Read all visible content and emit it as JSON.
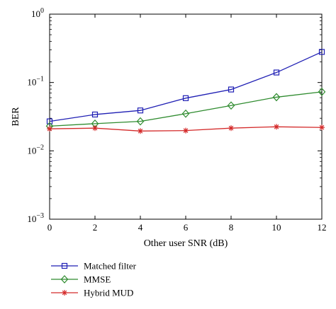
{
  "chart_data": {
    "type": "line",
    "title": "",
    "xlabel": "Other user SNR (dB)",
    "ylabel": "BER",
    "xscale": "linear",
    "yscale": "log",
    "xlim": [
      0,
      12
    ],
    "ylim": [
      0.001,
      1
    ],
    "grid": false,
    "legend_position": "below plot, left",
    "x": [
      0,
      2,
      4,
      6,
      8,
      10,
      12
    ],
    "x_ticks": [
      0,
      2,
      4,
      6,
      8,
      10,
      12
    ],
    "y_ticks": [
      {
        "value": 1,
        "base": "10",
        "exp": "0"
      },
      {
        "value": 0.1,
        "base": "10",
        "exp": "−1"
      },
      {
        "value": 0.01,
        "base": "10",
        "exp": "−2"
      },
      {
        "value": 0.001,
        "base": "10",
        "exp": "−3"
      }
    ],
    "series": [
      {
        "name": "Matched filter",
        "color": "#1f1fb4",
        "marker": "square",
        "values": [
          0.027,
          0.034,
          0.039,
          0.059,
          0.079,
          0.14,
          0.28
        ]
      },
      {
        "name": "MMSE",
        "color": "#2e8b2e",
        "marker": "diamond",
        "values": [
          0.023,
          0.025,
          0.027,
          0.035,
          0.046,
          0.061,
          0.073
        ]
      },
      {
        "name": "Hybrid MUD",
        "color": "#d42a2a",
        "marker": "star",
        "values": [
          0.021,
          0.0215,
          0.0195,
          0.0198,
          0.0215,
          0.0225,
          0.022
        ]
      }
    ]
  }
}
